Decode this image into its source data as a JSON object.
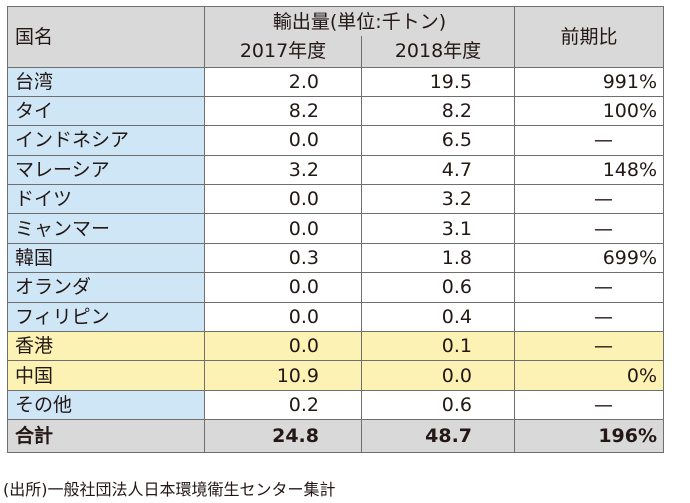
{
  "header": {
    "country": "国名",
    "export_group": "輸出量(単位:千トン)",
    "year1": "2017年度",
    "year2": "2018年度",
    "ratio": "前期比"
  },
  "rows": [
    {
      "name": "台湾",
      "y2017": "2.0",
      "y2018": "19.5",
      "ratio": "991%",
      "highlight": false
    },
    {
      "name": "タイ",
      "y2017": "8.2",
      "y2018": "8.2",
      "ratio": "100%",
      "highlight": false
    },
    {
      "name": "インドネシア",
      "y2017": "0.0",
      "y2018": "6.5",
      "ratio": "—",
      "highlight": false
    },
    {
      "name": "マレーシア",
      "y2017": "3.2",
      "y2018": "4.7",
      "ratio": "148%",
      "highlight": false
    },
    {
      "name": "ドイツ",
      "y2017": "0.0",
      "y2018": "3.2",
      "ratio": "—",
      "highlight": false
    },
    {
      "name": "ミャンマー",
      "y2017": "0.0",
      "y2018": "3.1",
      "ratio": "—",
      "highlight": false
    },
    {
      "name": "韓国",
      "y2017": "0.3",
      "y2018": "1.8",
      "ratio": "699%",
      "highlight": false
    },
    {
      "name": "オランダ",
      "y2017": "0.0",
      "y2018": "0.6",
      "ratio": "—",
      "highlight": false
    },
    {
      "name": "フィリピン",
      "y2017": "0.0",
      "y2018": "0.4",
      "ratio": "—",
      "highlight": false
    },
    {
      "name": "香港",
      "y2017": "0.0",
      "y2018": "0.1",
      "ratio": "—",
      "highlight": true
    },
    {
      "name": "中国",
      "y2017": "10.9",
      "y2018": "0.0",
      "ratio": "0%",
      "highlight": true
    },
    {
      "name": "その他",
      "y2017": "0.2",
      "y2018": "0.6",
      "ratio": "—",
      "highlight": false
    }
  ],
  "total": {
    "name": "合計",
    "y2017": "24.8",
    "y2018": "48.7",
    "ratio": "196%"
  },
  "source": "(出所)一般社団法人日本環境衛生センター集計",
  "colors": {
    "header_bg": "#d9d9d9",
    "name_bg": "#cfe6f7",
    "highlight_bg": "#fbf2b3"
  }
}
